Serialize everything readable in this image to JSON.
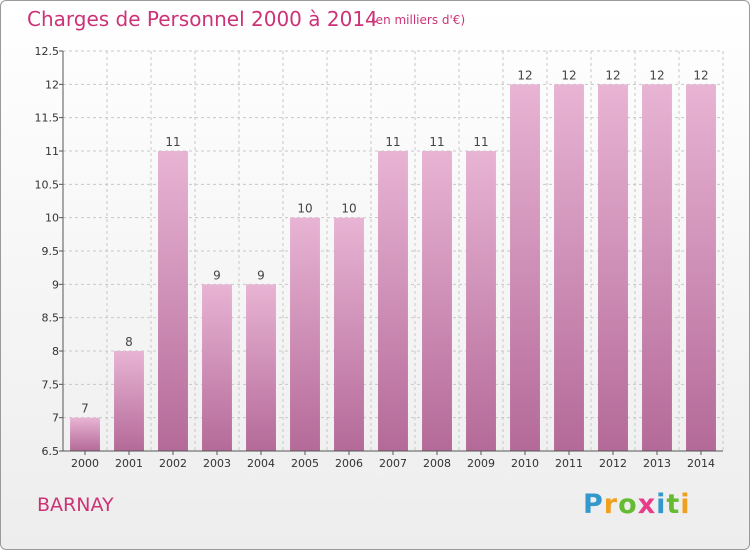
{
  "title": "Charges de Personnel 2000 à 2014",
  "subtitle": "(en milliers d'€)",
  "place": "BARNAY",
  "logo": {
    "letters": [
      "P",
      "r",
      "o",
      "x",
      "i",
      "t",
      "i"
    ],
    "colors": [
      "#3399cc",
      "#f0a020",
      "#66bb33",
      "#e83b8a",
      "#3399cc",
      "#66bb33",
      "#f0a020"
    ]
  },
  "colors": {
    "bar_light": "#e8b4d4",
    "bar_dark": "#b46a98",
    "grid": "#c8c8c8"
  },
  "chart_data": {
    "type": "bar",
    "categories": [
      "2000",
      "2001",
      "2002",
      "2003",
      "2004",
      "2005",
      "2006",
      "2007",
      "2008",
      "2009",
      "2010",
      "2011",
      "2012",
      "2013",
      "2014"
    ],
    "values": [
      7,
      8,
      11,
      9,
      9,
      10,
      10,
      11,
      11,
      11,
      12,
      12,
      12,
      12,
      12
    ],
    "labels": [
      "7",
      "8",
      "11",
      "9",
      "9",
      "10",
      "10",
      "11",
      "11",
      "11",
      "12",
      "12",
      "12",
      "12",
      "12"
    ],
    "ylim": [
      6.5,
      12.5
    ],
    "yticks": [
      "6.5",
      "7",
      "7.5",
      "8",
      "8.5",
      "9",
      "9.5",
      "10",
      "10.5",
      "11",
      "11.5",
      "12",
      "12.5"
    ],
    "grid": true
  }
}
